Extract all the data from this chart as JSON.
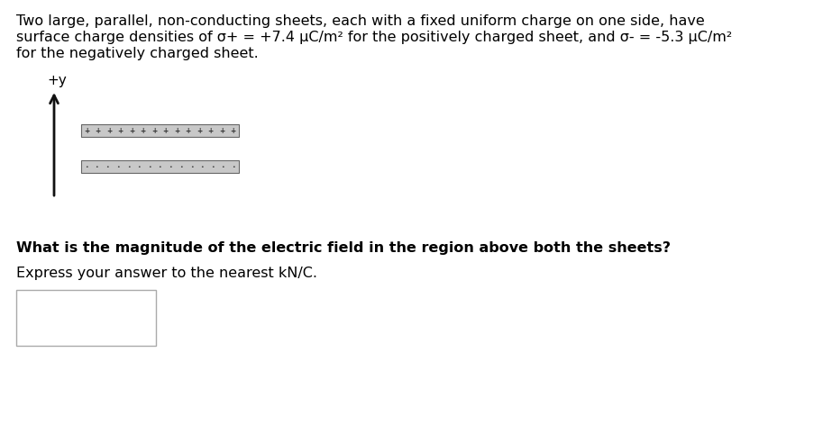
{
  "background_color": "#ffffff",
  "title_text_line1": "Two large, parallel, non-conducting sheets, each with a fixed uniform charge on one side, have",
  "title_text_line2": "surface charge densities of σ+ = +7.4 μC/m² for the positively charged sheet, and σ- = -5.3 μC/m²",
  "title_text_line3": "for the negatively charged sheet.",
  "question_text": "What is the magnitude of the electric field in the region above both the sheets?",
  "express_text": "Express your answer to the nearest kN/C.",
  "plus_y_label": "+y",
  "title_fontsize": 11.5,
  "question_fontsize": 11.5,
  "express_fontsize": 11.5,
  "label_fontsize": 11,
  "sheet1_color": "#c8c8c8",
  "sheet2_color": "#c8c8c8",
  "sheet_edge_color": "#666666",
  "dot_color": "#333333",
  "arrow_color": "#111111",
  "answer_box_edge_color": "#aaaaaa"
}
